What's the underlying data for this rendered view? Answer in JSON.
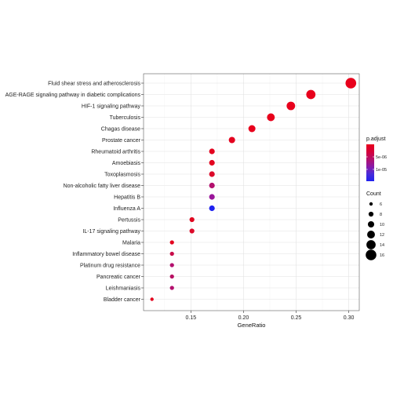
{
  "chart_data": {
    "type": "scatter",
    "xlabel": "GeneRatio",
    "ylabel": "",
    "xlim": [
      0.105,
      0.31
    ],
    "x_ticks": [
      0.15,
      0.2,
      0.25,
      0.3
    ],
    "x_tick_labels": [
      "0.15",
      "0.20",
      "0.25",
      "0.30"
    ],
    "grid": true,
    "legend_placement": "right",
    "color_legend": {
      "title": "p.adjust",
      "tick_labels": [
        "5e-06",
        "1e-05"
      ],
      "gradient_colors": [
        "#e8001c",
        "#d5003a",
        "#b4106a",
        "#8a1aa6",
        "#4a2cd8",
        "#1f22f0"
      ]
    },
    "size_legend": {
      "title": "Count",
      "values": [
        6,
        8,
        10,
        12,
        14,
        16
      ],
      "labels": [
        "6",
        "8",
        "10",
        "12",
        "14",
        "16"
      ]
    },
    "categories": [
      "Fluid shear stress and atherosclerosis",
      "AGE-RAGE signaling pathway in diabetic complications",
      "HIF-1 signaling pathway",
      "Tuberculosis",
      "Chagas disease",
      "Prostate cancer",
      "Rheumatoid arthritis",
      "Amoebiasis",
      "Toxoplasmosis",
      "Non-alcoholic fatty liver disease",
      "Hepatitis B",
      "Influenza A",
      "Pertussis",
      "IL-17 signaling pathway",
      "Malaria",
      "Inflammatory bowel disease",
      "Platinum drug resistance",
      "Pancreatic cancer",
      "Leishmaniasis",
      "Bladder cancer"
    ],
    "points": [
      {
        "gene_ratio": 0.302,
        "count": 16,
        "color": "#e8001c"
      },
      {
        "gene_ratio": 0.264,
        "count": 14,
        "color": "#e8001c"
      },
      {
        "gene_ratio": 0.245,
        "count": 13,
        "color": "#e8001c"
      },
      {
        "gene_ratio": 0.226,
        "count": 12,
        "color": "#e8001c"
      },
      {
        "gene_ratio": 0.208,
        "count": 11,
        "color": "#e8001c"
      },
      {
        "gene_ratio": 0.189,
        "count": 10,
        "color": "#e4021f"
      },
      {
        "gene_ratio": 0.17,
        "count": 9,
        "color": "#e3031f"
      },
      {
        "gene_ratio": 0.17,
        "count": 9,
        "color": "#e3041f"
      },
      {
        "gene_ratio": 0.17,
        "count": 9,
        "color": "#dc0a2a"
      },
      {
        "gene_ratio": 0.17,
        "count": 9,
        "color": "#b3106e"
      },
      {
        "gene_ratio": 0.17,
        "count": 9,
        "color": "#9a159a"
      },
      {
        "gene_ratio": 0.17,
        "count": 9,
        "color": "#1f22f0"
      },
      {
        "gene_ratio": 0.151,
        "count": 8,
        "color": "#e0061f"
      },
      {
        "gene_ratio": 0.151,
        "count": 8,
        "color": "#dc0a2a"
      },
      {
        "gene_ratio": 0.132,
        "count": 7,
        "color": "#e3041f"
      },
      {
        "gene_ratio": 0.132,
        "count": 7,
        "color": "#c80c4a"
      },
      {
        "gene_ratio": 0.132,
        "count": 7,
        "color": "#b3106e"
      },
      {
        "gene_ratio": 0.132,
        "count": 7,
        "color": "#b80f62"
      },
      {
        "gene_ratio": 0.132,
        "count": 7,
        "color": "#b3106e"
      },
      {
        "gene_ratio": 0.113,
        "count": 6,
        "color": "#e3041f"
      }
    ]
  }
}
